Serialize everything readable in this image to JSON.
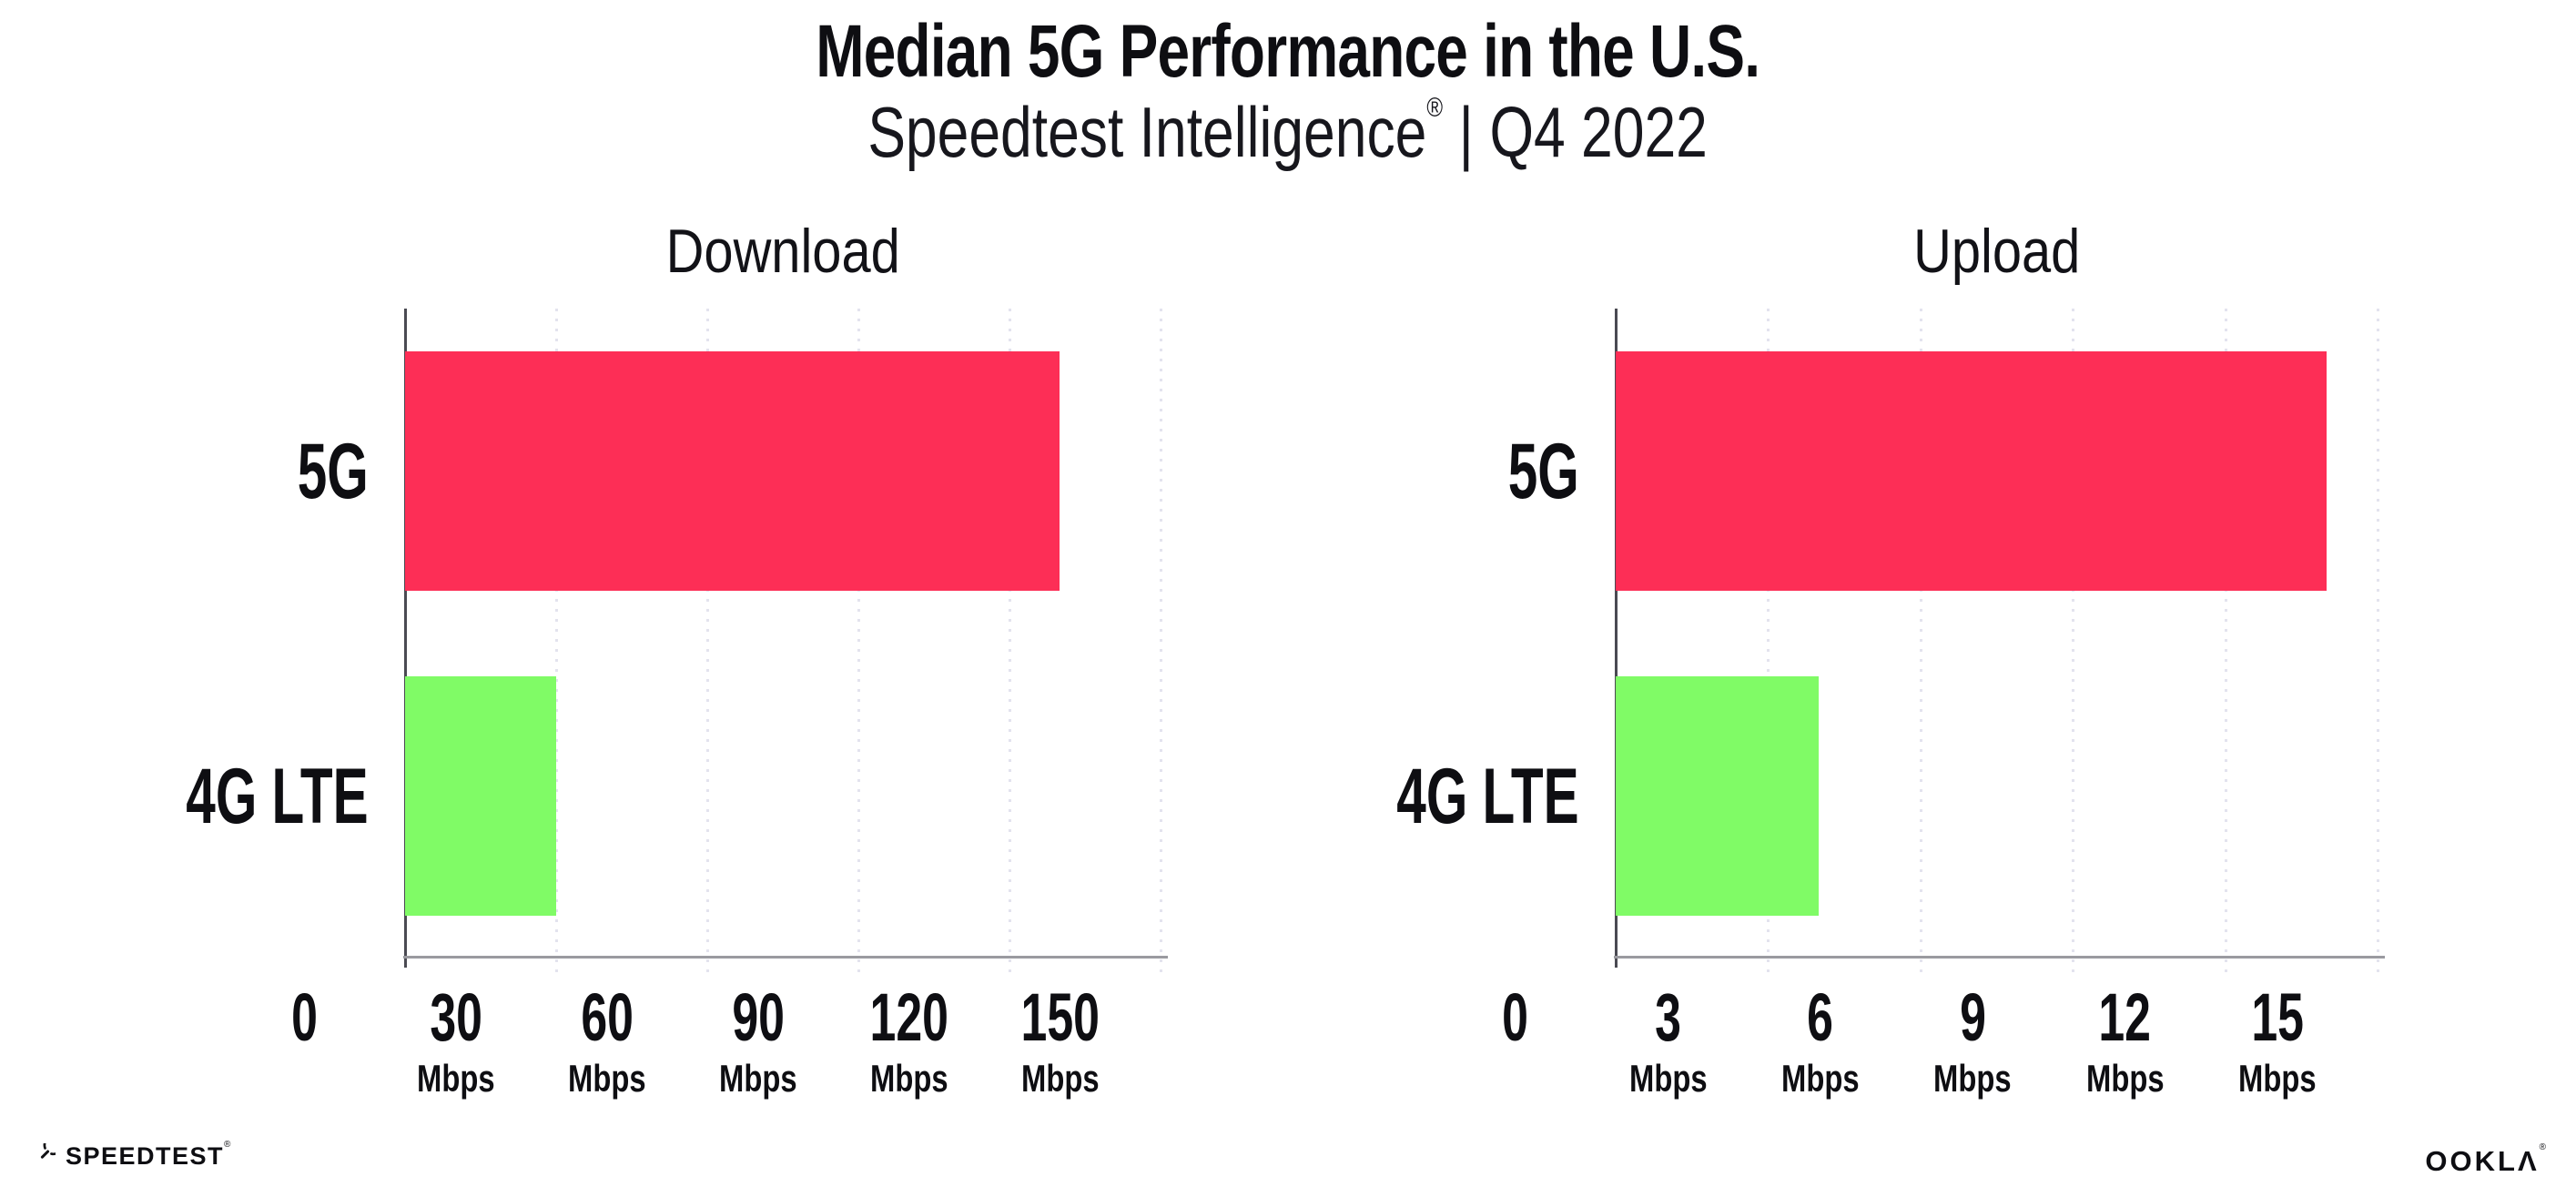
{
  "header": {
    "title": "Median 5G Performance in the U.S.",
    "subtitle": {
      "brand": "Speedtest Intelligence",
      "registered_mark": "®",
      "separator": "|",
      "period": "Q4 2022"
    }
  },
  "chart_data": [
    {
      "type": "bar",
      "orientation": "horizontal",
      "title": "Download",
      "categories": [
        "5G",
        "4G LTE"
      ],
      "values": [
        130,
        30
      ],
      "unit": "Mbps",
      "xlim": [
        0,
        150
      ],
      "xticks": [
        0,
        30,
        60,
        90,
        120,
        150
      ],
      "tick_unit": "Mbps",
      "bar_colors": [
        "#fd2e56",
        "#80fb66"
      ],
      "grid": "dotted-vertical",
      "legend": "none"
    },
    {
      "type": "bar",
      "orientation": "horizontal",
      "title": "Upload",
      "categories": [
        "5G",
        "4G LTE"
      ],
      "values": [
        14,
        4
      ],
      "unit": "Mbps",
      "xlim": [
        0,
        15
      ],
      "xticks": [
        0,
        3,
        6,
        9,
        12,
        15
      ],
      "tick_unit": "Mbps",
      "bar_colors": [
        "#fd2e56",
        "#80fb66"
      ],
      "grid": "dotted-vertical",
      "legend": "none"
    }
  ],
  "footer": {
    "speedtest_wordmark": "SPEEDTEST",
    "speedtest_registered_mark": "®",
    "ookla_wordmark": "OOKLΛ",
    "ookla_registered_mark": "®"
  },
  "colors": {
    "bar_5g": "#fd2e56",
    "bar_4g_lte": "#80fb66",
    "gridline": "#e3e3ee",
    "y_axis": "#4a4a52",
    "x_axis": "#9a9aa0",
    "text": "#0e0e12",
    "background": "#ffffff"
  }
}
